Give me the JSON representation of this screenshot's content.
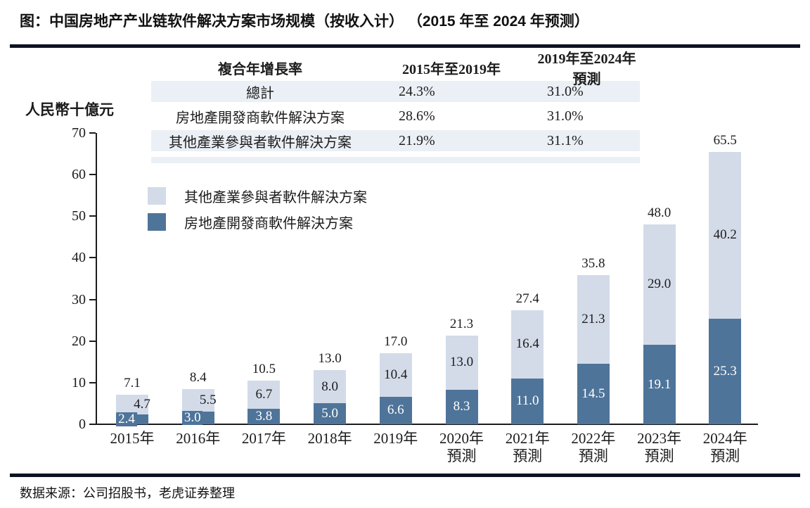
{
  "title": "图：中国房地产产业链软件解决方案市场规模（按收入计） （2015 年至 2024 年预测）",
  "source": "数据来源：公司招股书，老虎证券整理",
  "colors": {
    "rule": "#0d1321",
    "stripe": "#ebf0f6",
    "developer_series": "#4f7499",
    "other_series": "#d3dbe9",
    "text": "#1c1c1c",
    "label_on_dark": "#ffffff"
  },
  "cagr_table": {
    "headers": [
      "複合年增長率",
      "2015年至2019年",
      "2019年至2024年預測"
    ],
    "rows": [
      {
        "label": "總計",
        "v1": "24.3%",
        "v2": "31.0%"
      },
      {
        "label": "房地產開發商軟件解決方案",
        "v1": "28.6%",
        "v2": "31.0%"
      },
      {
        "label": "其他產業參與者軟件解決方案",
        "v1": "21.9%",
        "v2": "31.1%"
      }
    ]
  },
  "chart_data": {
    "type": "bar",
    "stacked": true,
    "ylabel": "人民幣十億元",
    "ylim": [
      0,
      70
    ],
    "ytick_step": 10,
    "grid": false,
    "legend_position": "upper-left-inside",
    "categories": [
      {
        "label": "2015年",
        "sub": ""
      },
      {
        "label": "2016年",
        "sub": ""
      },
      {
        "label": "2017年",
        "sub": ""
      },
      {
        "label": "2018年",
        "sub": ""
      },
      {
        "label": "2019年",
        "sub": ""
      },
      {
        "label": "2020年",
        "sub": "預測"
      },
      {
        "label": "2021年",
        "sub": "預測"
      },
      {
        "label": "2022年",
        "sub": "預測"
      },
      {
        "label": "2023年",
        "sub": "預測"
      },
      {
        "label": "2024年",
        "sub": "預測"
      }
    ],
    "series": [
      {
        "name": "房地產開發商軟件解決方案",
        "color": "#4f7499",
        "values": [
          2.4,
          3.0,
          3.8,
          5.0,
          6.6,
          8.3,
          11.0,
          14.5,
          19.1,
          25.3
        ]
      },
      {
        "name": "其他產業參與者軟件解決方案",
        "color": "#d3dbe9",
        "values": [
          4.7,
          5.5,
          6.7,
          8.0,
          10.4,
          13.0,
          16.4,
          21.3,
          29.0,
          40.2
        ]
      }
    ],
    "totals": [
      7.1,
      8.4,
      10.5,
      13.0,
      17.0,
      21.3,
      27.4,
      35.8,
      48.0,
      65.5
    ],
    "legend": [
      {
        "label": "其他產業參與者軟件解決方案",
        "color": "#d3dbe9"
      },
      {
        "label": "房地產開發商軟件解決方案",
        "color": "#4f7499"
      }
    ]
  }
}
